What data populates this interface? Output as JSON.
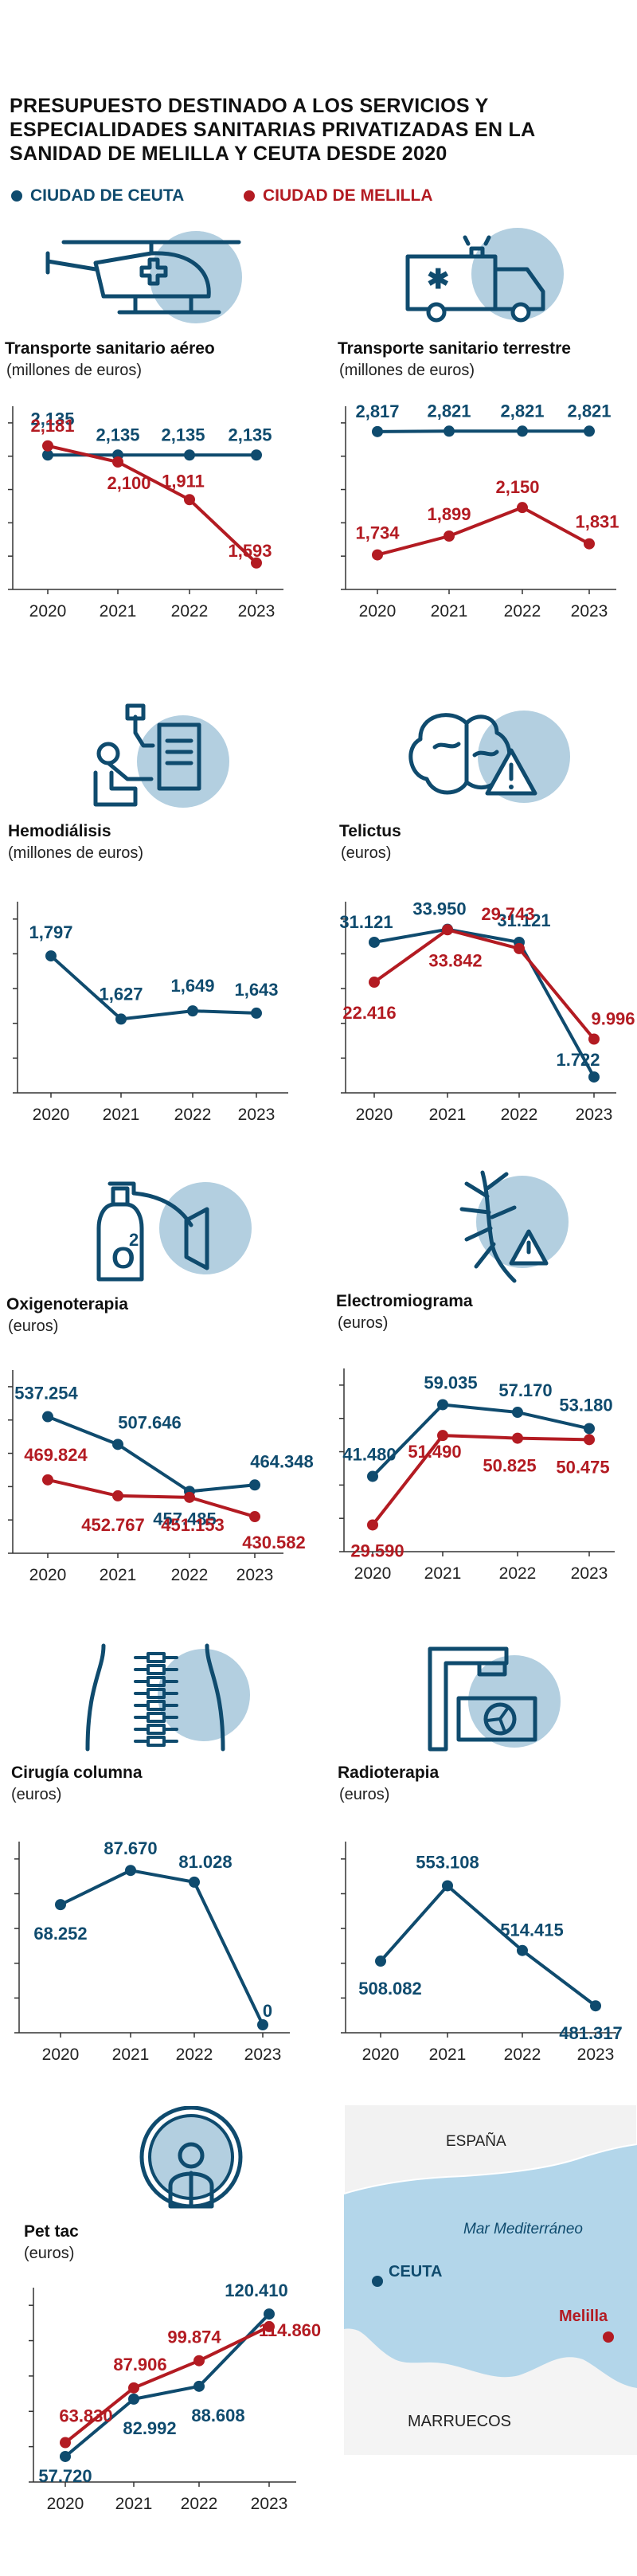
{
  "title": "Presupuesto destinado a los servicios y especialidades sanitarias privatizadas en la Sanidad de Melilla y Ceuta desde 2020",
  "legend": {
    "ceuta": "CIUDAD DE CEUTA",
    "melilla": "CIUDAD DE MELILLA"
  },
  "colors": {
    "ceuta": "#0f4b6e",
    "melilla": "#b31b22",
    "accent": "#b3cfe0",
    "sea": "#b3d6ea",
    "land": "#f2f2f2"
  },
  "map": {
    "north": "ESPAÑA",
    "sea": "Mar Mediterráneo",
    "ceuta": "CEUTA",
    "melilla": "Melilla",
    "south": "MARRUECOS"
  },
  "chart_data": [
    {
      "type": "line",
      "title": "Transporte sanitario  aéreo",
      "subtitle": "(millones de euros)",
      "icon": "helicopter-icon",
      "categories": [
        "2020",
        "2021",
        "2022",
        "2023"
      ],
      "series": [
        {
          "name": "Ciudad de Ceuta",
          "values": [
            2135,
            2135,
            2135,
            2135
          ],
          "labels": [
            "2,135",
            "2,135",
            "2,135",
            "2,135"
          ]
        },
        {
          "name": "Ciudad de Melilla",
          "values": [
            2181,
            2100,
            1911,
            1593
          ],
          "labels": [
            "2,181",
            "2,100",
            "1,911",
            "1,593"
          ]
        }
      ]
    },
    {
      "type": "line",
      "title": "Transporte sanitario terrestre",
      "subtitle": "(millones de euros)",
      "icon": "ambulance-icon",
      "categories": [
        "2020",
        "2021",
        "2022",
        "2023"
      ],
      "series": [
        {
          "name": "Ciudad de Ceuta",
          "values": [
            2817,
            2821,
            2821,
            2821
          ],
          "labels": [
            "2,817",
            "2,821",
            "2,821",
            "2,821"
          ]
        },
        {
          "name": "Ciudad de Melilla",
          "values": [
            1734,
            1899,
            2150,
            1831
          ],
          "labels": [
            "1,734",
            "1,899",
            "2,150",
            "1,831"
          ]
        }
      ]
    },
    {
      "type": "line",
      "title": "Hemodiálisis",
      "subtitle": "(millones de euros)",
      "icon": "hemodialysis-icon",
      "categories": [
        "2020",
        "2021",
        "2022",
        "2023"
      ],
      "series": [
        {
          "name": "Ciudad de Ceuta",
          "values": [
            1797,
            1627,
            1649,
            1643
          ],
          "labels": [
            "1,797",
            "1,627",
            "1,649",
            "1,643"
          ]
        }
      ]
    },
    {
      "type": "line",
      "title": "Telictus",
      "subtitle": "(euros)",
      "icon": "brain-alert-icon",
      "categories": [
        "2020",
        "2021",
        "2022",
        "2023"
      ],
      "series": [
        {
          "name": "Ciudad de Ceuta",
          "values": [
            31121,
            33950,
            31121,
            1722
          ],
          "labels": [
            "31.121",
            "33.950",
            "31.121",
            "1.722"
          ]
        },
        {
          "name": "Ciudad de Melilla",
          "values": [
            22416,
            33842,
            29743,
            9996
          ],
          "labels": [
            "22.416",
            "33.842",
            "29.743",
            "9.996"
          ]
        }
      ]
    },
    {
      "type": "line",
      "title": "Oxigenoterapia",
      "subtitle": "(euros)",
      "icon": "oxygen-tank-icon",
      "categories": [
        "2020",
        "2021",
        "2022",
        "2023"
      ],
      "series": [
        {
          "name": "Ciudad de Ceuta",
          "values": [
            537254,
            507646,
            457485,
            464348
          ],
          "labels": [
            "537.254",
            "507.646",
            "457.485",
            "464.348"
          ]
        },
        {
          "name": "Ciudad de Melilla",
          "values": [
            469824,
            452767,
            451153,
            430582
          ],
          "labels": [
            "469.824",
            "452.767",
            "451.153",
            "430.582"
          ]
        }
      ]
    },
    {
      "type": "line",
      "title": "Electromiograma",
      "subtitle": "(euros)",
      "icon": "nerves-icon",
      "categories": [
        "2020",
        "2021",
        "2022",
        "2023"
      ],
      "series": [
        {
          "name": "Ciudad de Ceuta",
          "values": [
            41480,
            59035,
            57170,
            53180
          ],
          "labels": [
            "41.480",
            "59.035",
            "57.170",
            "53.180"
          ]
        },
        {
          "name": "Ciudad de Melilla",
          "values": [
            29590,
            51490,
            50825,
            50475
          ],
          "labels": [
            "29.590",
            "51.490",
            "50.825",
            "50.475"
          ]
        }
      ]
    },
    {
      "type": "line",
      "title": "Cirugía  columna",
      "subtitle": "(euros)",
      "icon": "spine-icon",
      "categories": [
        "2020",
        "2021",
        "2022",
        "2023"
      ],
      "series": [
        {
          "name": "Ciudad de Ceuta",
          "values": [
            68252,
            87670,
            81028,
            0
          ],
          "labels": [
            "68.252",
            "87.670",
            "81.028",
            "0"
          ]
        }
      ]
    },
    {
      "type": "line",
      "title": "Radioterapia",
      "subtitle": "(euros)",
      "icon": "radiotherapy-icon",
      "categories": [
        "2020",
        "2021",
        "2022",
        "2023"
      ],
      "series": [
        {
          "name": "Ciudad de Ceuta",
          "values": [
            508082,
            553108,
            514415,
            481317
          ],
          "labels": [
            "508.082",
            "553.108",
            "514.415",
            "481.317"
          ]
        }
      ]
    },
    {
      "type": "line",
      "title": "Pet tac",
      "subtitle": "(euros)",
      "icon": "pet-scanner-icon",
      "categories": [
        "2020",
        "2021",
        "2022",
        "2023"
      ],
      "series": [
        {
          "name": "Ciudad de Ceuta",
          "values": [
            57720,
            82992,
            88608,
            120410
          ],
          "labels": [
            "57.720",
            "82.992",
            "88.608",
            "120.410"
          ]
        },
        {
          "name": "Ciudad de Melilla",
          "values": [
            63830,
            87906,
            99874,
            114860
          ],
          "labels": [
            "63.830",
            "87.906",
            "99.874",
            "114.860"
          ]
        }
      ]
    }
  ]
}
